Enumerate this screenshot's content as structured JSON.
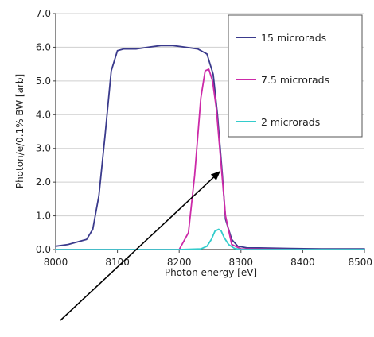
{
  "chart_data": {
    "type": "line",
    "title": "",
    "xlabel": "Photon energy [eV]",
    "ylabel": "Photon/e/0.1% BW [arb]",
    "xlim": [
      8000,
      8500
    ],
    "ylim": [
      0,
      7
    ],
    "x_ticks": [
      8000,
      8100,
      8200,
      8300,
      8400,
      8500
    ],
    "y_ticks": [
      0,
      1,
      2,
      3,
      4,
      5,
      6,
      7
    ],
    "x_tick_labels": [
      "8000",
      "8100",
      "8200",
      "8300",
      "8400",
      "8500"
    ],
    "y_tick_labels": [
      "0.0",
      "1.0",
      "2.0",
      "3.0",
      "4.0",
      "5.0",
      "6.0",
      "7.0"
    ],
    "grid": true,
    "legend_position": "top-right",
    "series": [
      {
        "name": "15 microrads",
        "color": "#3a3a8c",
        "x": [
          8000,
          8020,
          8040,
          8050,
          8060,
          8070,
          8080,
          8090,
          8100,
          8110,
          8130,
          8150,
          8170,
          8190,
          8210,
          8230,
          8245,
          8255,
          8262,
          8270,
          8275,
          8285,
          8295,
          8310,
          8330,
          8380,
          8430,
          8480,
          8500
        ],
        "y": [
          0.1,
          0.15,
          0.25,
          0.3,
          0.6,
          1.6,
          3.4,
          5.3,
          5.9,
          5.95,
          5.95,
          6.0,
          6.05,
          6.05,
          6.0,
          5.95,
          5.8,
          5.2,
          4.0,
          2.2,
          0.9,
          0.3,
          0.1,
          0.05,
          0.05,
          0.03,
          0.02,
          0.02,
          0.02
        ]
      },
      {
        "name": "7.5 microrads",
        "color": "#cc2aa8",
        "x": [
          8000,
          8100,
          8200,
          8215,
          8225,
          8235,
          8242,
          8248,
          8254,
          8260,
          8267,
          8275,
          8285,
          8300,
          8400,
          8500
        ],
        "y": [
          0.0,
          0.0,
          0.0,
          0.5,
          2.2,
          4.5,
          5.3,
          5.35,
          5.0,
          4.2,
          2.7,
          1.0,
          0.15,
          0.02,
          0.0,
          0.0
        ]
      },
      {
        "name": "2 microrads",
        "color": "#33cccc",
        "x": [
          8000,
          8200,
          8235,
          8245,
          8252,
          8258,
          8264,
          8268,
          8273,
          8280,
          8290,
          8300,
          8400,
          8500
        ],
        "y": [
          0.0,
          0.0,
          0.02,
          0.1,
          0.3,
          0.55,
          0.6,
          0.55,
          0.35,
          0.15,
          0.03,
          0.0,
          0.0,
          0.0
        ]
      }
    ]
  },
  "annotation": {
    "type": "arrow",
    "color": "#000000",
    "points_to": {
      "x": 8265,
      "y": 2.3
    }
  }
}
